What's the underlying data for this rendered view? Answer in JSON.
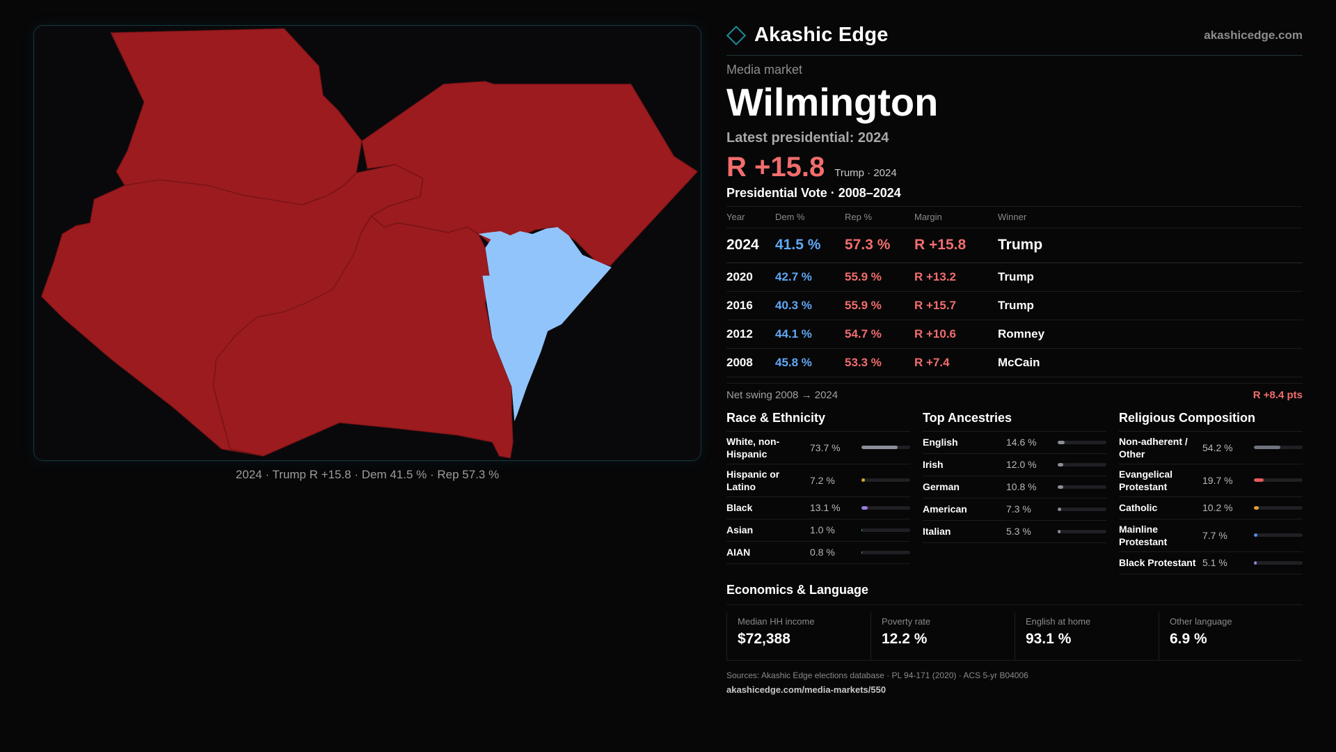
{
  "brand": {
    "name": "Akashic Edge",
    "site": "akashicedge.com"
  },
  "map": {
    "caption": "2024 · Trump R +15.8 · Dem 41.5 % · Rep 57.3 %",
    "colors": {
      "rep": "#9b1b1e",
      "dem": "#92c4fc",
      "background": "#09090b",
      "border": "#14393f"
    }
  },
  "header": {
    "kind_label": "Media market",
    "market_name": "Wilmington",
    "latest_label": "Latest presidential: 2024",
    "margin": "R +15.8",
    "margin_sub": "Trump · 2024"
  },
  "presidential": {
    "title": "Presidential Vote · 2008–2024",
    "columns": [
      "Year",
      "Dem %",
      "Rep %",
      "Margin",
      "Winner"
    ],
    "rows": [
      {
        "year": "2024",
        "dem": "41.5 %",
        "rep": "57.3 %",
        "margin": "R +15.8",
        "winner": "Trump"
      },
      {
        "year": "2020",
        "dem": "42.7 %",
        "rep": "55.9 %",
        "margin": "R +13.2",
        "winner": "Trump"
      },
      {
        "year": "2016",
        "dem": "40.3 %",
        "rep": "55.9 %",
        "margin": "R +15.7",
        "winner": "Trump"
      },
      {
        "year": "2012",
        "dem": "44.1 %",
        "rep": "54.7 %",
        "margin": "R +10.6",
        "winner": "Romney"
      },
      {
        "year": "2008",
        "dem": "45.8 %",
        "rep": "53.3 %",
        "margin": "R +7.4",
        "winner": "McCain"
      }
    ],
    "swing_label": "Net swing 2008 → 2024",
    "swing_value": "R +8.4 pts"
  },
  "race": {
    "title": "Race & Ethnicity",
    "items": [
      {
        "label": "White, non-Hispanic",
        "pct": "73.7 %",
        "value": 73.7,
        "color": "#8a8f99"
      },
      {
        "label": "Hispanic or Latino",
        "pct": "7.2 %",
        "value": 7.2,
        "color": "#e0a030"
      },
      {
        "label": "Black",
        "pct": "13.1 %",
        "value": 13.1,
        "color": "#9a7be0"
      },
      {
        "label": "Asian",
        "pct": "1.0 %",
        "value": 1.0,
        "color": "#40b8a8"
      },
      {
        "label": "AIAN",
        "pct": "0.8 %",
        "value": 0.8,
        "color": "#d0803a"
      }
    ]
  },
  "ancestry": {
    "title": "Top Ancestries",
    "items": [
      {
        "label": "English",
        "pct": "14.6 %",
        "value": 14.6,
        "color": "#8a8f99"
      },
      {
        "label": "Irish",
        "pct": "12.0 %",
        "value": 12.0,
        "color": "#8a8f99"
      },
      {
        "label": "German",
        "pct": "10.8 %",
        "value": 10.8,
        "color": "#8a8f99"
      },
      {
        "label": "American",
        "pct": "7.3 %",
        "value": 7.3,
        "color": "#8a8f99"
      },
      {
        "label": "Italian",
        "pct": "5.3 %",
        "value": 5.3,
        "color": "#8a8f99"
      }
    ]
  },
  "religion": {
    "title": "Religious Composition",
    "items": [
      {
        "label": "Non-adherent / Other",
        "pct": "54.2 %",
        "value": 54.2,
        "color": "#6e737c"
      },
      {
        "label": "Evangelical Protestant",
        "pct": "19.7 %",
        "value": 19.7,
        "color": "#e25a5a"
      },
      {
        "label": "Catholic",
        "pct": "10.2 %",
        "value": 10.2,
        "color": "#e0a030"
      },
      {
        "label": "Mainline Protestant",
        "pct": "7.7 %",
        "value": 7.7,
        "color": "#4f8fe0"
      },
      {
        "label": "Black Protestant",
        "pct": "5.1 %",
        "value": 5.1,
        "color": "#9a7be0"
      }
    ]
  },
  "economics": {
    "title": "Economics & Language",
    "stats": [
      {
        "label": "Median HH income",
        "value": "$72,388"
      },
      {
        "label": "Poverty rate",
        "value": "12.2 %"
      },
      {
        "label": "English at home",
        "value": "93.1 %"
      },
      {
        "label": "Other language",
        "value": "6.9 %"
      }
    ]
  },
  "footer": {
    "sources": "Sources: Akashic Edge elections database · PL 94-171 (2020) · ACS 5-yr B04006",
    "url": "akashicedge.com/media-markets/550"
  }
}
